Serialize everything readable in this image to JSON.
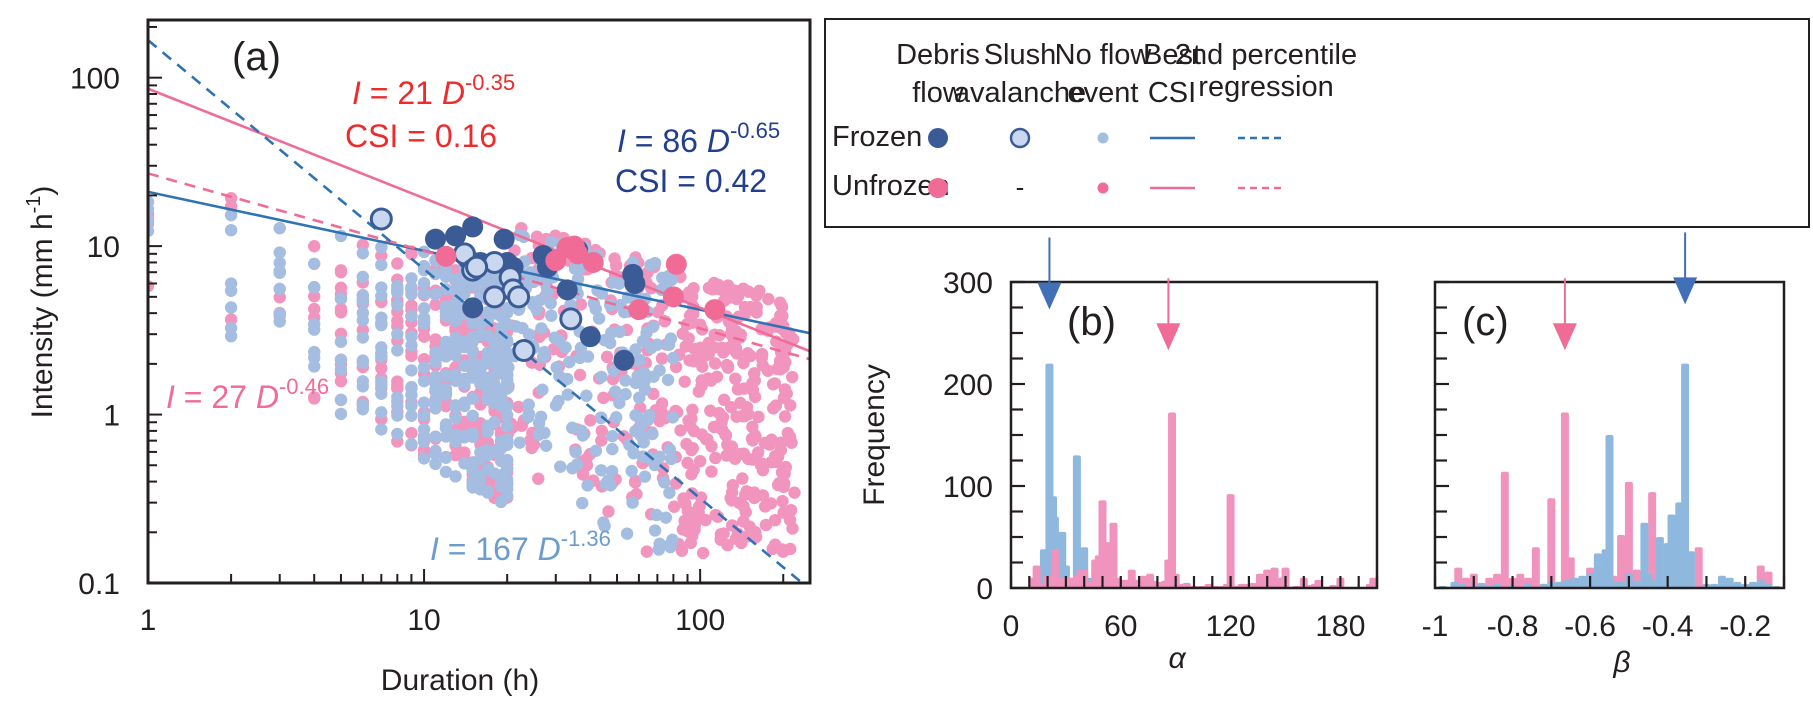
{
  "colors": {
    "frozen_debris": "#3a5b96",
    "frozen_slush_fill": "#c9d8ee",
    "frozen_noflow": "#a5bde0",
    "frozen_line": "#2f73b4",
    "unfrozen_debris": "#f06b95",
    "unfrozen_noflow": "#f195bf",
    "unfrozen_line": "#f06b95",
    "annot_red": "#ee2a2a",
    "annot_navy": "#213f8c",
    "annot_pink": "#f06b95",
    "annot_lightblue": "#6d9ccc",
    "hist_blue": "#8fb8de",
    "hist_pink": "#f093bd",
    "arrow_blue": "#4170b8",
    "arrow_pink": "#f06b95"
  },
  "legend": {
    "columns": [
      {
        "line1": "Debris",
        "line2": "flow"
      },
      {
        "line1": "Slush",
        "line2": "avalanche"
      },
      {
        "line1": "No flow",
        "line2": "event"
      },
      {
        "line1": "Best",
        "line2": "CSI"
      },
      {
        "line1": "2nd percentile",
        "line2": "regression"
      }
    ],
    "rows": [
      {
        "label": "Frozen"
      },
      {
        "label": "Unfrozen",
        "slush_placeholder": "-"
      }
    ]
  },
  "chart_data": [
    {
      "id": "a",
      "type": "scatter",
      "panel_label": "(a)",
      "xlabel": "Duration (h)",
      "ylabel": "Intensity (mm h",
      "ylabel_sup": "-1",
      "ylabel_close": ")",
      "xscale": "log",
      "yscale": "log",
      "xlim": [
        1,
        250
      ],
      "ylim": [
        0.1,
        220
      ],
      "xticks": [
        {
          "v": 1,
          "label": "1"
        },
        {
          "v": 10,
          "label": "10"
        },
        {
          "v": 100,
          "label": "100"
        }
      ],
      "yticks": [
        {
          "v": 0.1,
          "label": "0.1"
        },
        {
          "v": 1,
          "label": "1"
        },
        {
          "v": 10,
          "label": "10"
        },
        {
          "v": 100,
          "label": "100"
        }
      ],
      "lines": [
        {
          "name": "Frozen best CSI",
          "a": 21,
          "b": -0.35,
          "style": "solid",
          "color_key": "frozen_line"
        },
        {
          "name": "Unfrozen best CSI",
          "a": 86,
          "b": -0.65,
          "style": "solid",
          "color_key": "unfrozen_line"
        },
        {
          "name": "Unfrozen 2nd percentile",
          "a": 27,
          "b": -0.46,
          "style": "dashed",
          "color_key": "unfrozen_line"
        },
        {
          "name": "Frozen 2nd percentile",
          "a": 167,
          "b": -1.36,
          "style": "dashed",
          "color_key": "frozen_line"
        }
      ],
      "annotations": [
        {
          "id": "eq_red",
          "prefix": "I",
          "mid": " = 21 ",
          "var": "D",
          "exp": "-0.35",
          "color_key": "annot_red"
        },
        {
          "id": "csi_red",
          "text": "CSI = 0.16",
          "color_key": "annot_red"
        },
        {
          "id": "eq_navy",
          "prefix": "I",
          "mid": " = 86 ",
          "var": "D",
          "exp": "-0.65",
          "color_key": "annot_navy"
        },
        {
          "id": "csi_navy",
          "text": "CSI = 0.42",
          "color_key": "annot_navy"
        },
        {
          "id": "eq_pink",
          "prefix": "I",
          "mid": " = 27 ",
          "var": "D",
          "exp": "-0.46",
          "color_key": "annot_pink"
        },
        {
          "id": "eq_lightblue",
          "prefix": "I",
          "mid": " = 167 ",
          "var": "D",
          "exp": "-1.36",
          "color_key": "annot_lightblue"
        }
      ],
      "series": [
        {
          "name": "Frozen debris flow",
          "marker": "filled-large",
          "color_key": "frozen_debris",
          "points": [
            [
              11,
              11
            ],
            [
              13,
              11.5
            ],
            [
              15,
              13
            ],
            [
              14.5,
              8.3
            ],
            [
              16,
              8
            ],
            [
              19.5,
              11
            ],
            [
              21,
              7.5
            ],
            [
              27,
              8.8
            ],
            [
              28,
              7.5
            ],
            [
              33,
              5.5
            ],
            [
              36,
              9.5
            ],
            [
              40,
              2.9
            ],
            [
              53,
              2.1
            ],
            [
              57,
              6.8
            ],
            [
              58,
              6.0
            ],
            [
              15,
              4.3
            ],
            [
              20,
              8
            ]
          ]
        },
        {
          "name": "Frozen slush avalanche",
          "marker": "hollow-large",
          "color_key": "frozen_slush_fill",
          "points": [
            [
              7,
              14.5
            ],
            [
              14,
              9
            ],
            [
              15,
              7.2
            ],
            [
              18,
              8
            ],
            [
              20.5,
              6.5
            ],
            [
              21,
              5.5
            ],
            [
              18,
              5
            ],
            [
              22,
              5
            ],
            [
              23,
              2.4
            ],
            [
              34,
              3.7
            ],
            [
              15.5,
              7.5
            ]
          ]
        },
        {
          "name": "Unfrozen debris flow",
          "marker": "filled-large",
          "color_key": "unfrozen_debris",
          "points": [
            [
              12,
              8.7
            ],
            [
              30,
              8.2
            ],
            [
              33,
              9.8
            ],
            [
              35,
              10
            ],
            [
              41,
              8.0
            ],
            [
              60,
              4.2
            ],
            [
              80,
              5
            ],
            [
              82,
              7.8
            ],
            [
              113,
              4.2
            ],
            [
              36,
              9
            ]
          ]
        },
        {
          "name": "Frozen no flow event",
          "marker": "small",
          "color_key": "frozen_noflow",
          "generated": true
        },
        {
          "name": "Unfrozen no flow event",
          "marker": "small",
          "color_key": "unfrozen_noflow",
          "generated": true
        }
      ]
    },
    {
      "id": "b",
      "type": "bar",
      "panel_label": "(b)",
      "xlabel": "α",
      "ylabel": "Frequency",
      "xlim": [
        0,
        200
      ],
      "ylim": [
        0,
        300
      ],
      "xticks": [
        {
          "v": 0,
          "label": "0"
        },
        {
          "v": 60,
          "label": "60"
        },
        {
          "v": 120,
          "label": "120"
        },
        {
          "v": 180,
          "label": "180"
        }
      ],
      "yticks": [
        {
          "v": 0,
          "label": "0"
        },
        {
          "v": 100,
          "label": "100"
        },
        {
          "v": 200,
          "label": "200"
        },
        {
          "v": 300,
          "label": "300"
        }
      ],
      "arrows": [
        {
          "x": 21,
          "color_key": "arrow_blue",
          "ylevel": 275
        },
        {
          "x": 86,
          "color_key": "arrow_pink",
          "ylevel": 235
        }
      ],
      "series": [
        {
          "name": "Frozen",
          "color_key": "hist_blue",
          "x": [
            14,
            16,
            18,
            20,
            21,
            23,
            24,
            26,
            28,
            30,
            33,
            35,
            36,
            38,
            40,
            42,
            44,
            96,
            110
          ],
          "values": [
            5,
            15,
            38,
            38,
            220,
            90,
            70,
            28,
            55,
            22,
            8,
            3,
            130,
            38,
            40,
            10,
            3,
            5,
            2
          ]
        },
        {
          "name": "Unfrozen",
          "color_key": "hist_pink",
          "x": [
            12,
            14,
            16,
            18,
            20,
            22,
            24,
            26,
            28,
            30,
            32,
            34,
            36,
            38,
            40,
            42,
            44,
            46,
            48,
            50,
            52,
            54,
            56,
            58,
            60,
            62,
            64,
            66,
            68,
            70,
            72,
            74,
            76,
            78,
            80,
            82,
            84,
            86,
            88,
            90,
            92,
            94,
            96,
            98,
            100,
            104,
            108,
            112,
            116,
            118,
            120,
            124,
            126,
            128,
            132,
            134,
            136,
            140,
            142,
            144,
            146,
            148,
            150,
            156,
            160,
            162,
            166,
            168,
            176,
            180,
            196,
            198,
            200
          ],
          "values": [
            10,
            22,
            5,
            4,
            12,
            6,
            38,
            6,
            10,
            8,
            10,
            10,
            12,
            18,
            18,
            3,
            6,
            28,
            32,
            86,
            28,
            45,
            64,
            10,
            6,
            8,
            3,
            18,
            8,
            4,
            12,
            2,
            14,
            7,
            6,
            4,
            7,
            28,
            172,
            14,
            2,
            4,
            4,
            2,
            2,
            2,
            4,
            2,
            2,
            4,
            92,
            2,
            4,
            4,
            5,
            2,
            14,
            18,
            4,
            20,
            4,
            10,
            20,
            2,
            10,
            3,
            4,
            8,
            3,
            10,
            4,
            10,
            4
          ]
        }
      ]
    },
    {
      "id": "c",
      "type": "bar",
      "panel_label": "(c)",
      "xlabel": "β",
      "ylabel": "",
      "xlim": [
        -1.0,
        -0.1
      ],
      "ylim": [
        0,
        300
      ],
      "xticks": [
        {
          "v": -1,
          "label": "-1"
        },
        {
          "v": -0.8,
          "label": "-0.8"
        },
        {
          "v": -0.6,
          "label": "-0.6"
        },
        {
          "v": -0.4,
          "label": "-0.4"
        },
        {
          "v": -0.2,
          "label": "-0.2"
        }
      ],
      "arrows": [
        {
          "x": -0.665,
          "color_key": "arrow_pink",
          "ylevel": 235
        },
        {
          "x": -0.355,
          "color_key": "arrow_blue",
          "ylevel": 280
        }
      ],
      "series": [
        {
          "name": "Unfrozen",
          "color_key": "hist_pink",
          "x": [
            -0.94,
            -0.92,
            -0.9,
            -0.88,
            -0.86,
            -0.84,
            -0.82,
            -0.8,
            -0.78,
            -0.76,
            -0.74,
            -0.72,
            -0.7,
            -0.68,
            -0.665,
            -0.65,
            -0.62,
            -0.6,
            -0.58,
            -0.56,
            -0.54,
            -0.52,
            -0.5,
            -0.48,
            -0.46,
            -0.44,
            -0.42,
            -0.38,
            -0.34,
            -0.32,
            -0.16,
            -0.14
          ],
          "values": [
            20,
            10,
            14,
            5,
            10,
            14,
            114,
            10,
            14,
            10,
            40,
            4,
            88,
            6,
            172,
            30,
            6,
            20,
            16,
            12,
            12,
            52,
            104,
            18,
            6,
            94,
            6,
            4,
            4,
            40,
            22,
            16
          ]
        },
        {
          "name": "Frozen",
          "color_key": "hist_blue",
          "x": [
            -0.98,
            -0.95,
            -0.93,
            -0.9,
            -0.88,
            -0.86,
            -0.84,
            -0.8,
            -0.76,
            -0.72,
            -0.7,
            -0.68,
            -0.66,
            -0.64,
            -0.62,
            -0.6,
            -0.58,
            -0.56,
            -0.55,
            -0.53,
            -0.52,
            -0.5,
            -0.48,
            -0.46,
            -0.45,
            -0.43,
            -0.42,
            -0.4,
            -0.39,
            -0.37,
            -0.355,
            -0.34,
            -0.3,
            -0.28,
            -0.26,
            -0.24,
            -0.22,
            -0.2,
            -0.18,
            -0.16,
            -0.14,
            -0.12
          ],
          "values": [
            2,
            6,
            4,
            2,
            4,
            2,
            4,
            2,
            4,
            4,
            6,
            6,
            8,
            10,
            12,
            14,
            34,
            38,
            150,
            6,
            6,
            14,
            6,
            64,
            14,
            8,
            50,
            44,
            72,
            84,
            220,
            36,
            4,
            4,
            12,
            10,
            6,
            4,
            6,
            8,
            4,
            2
          ]
        }
      ]
    }
  ]
}
